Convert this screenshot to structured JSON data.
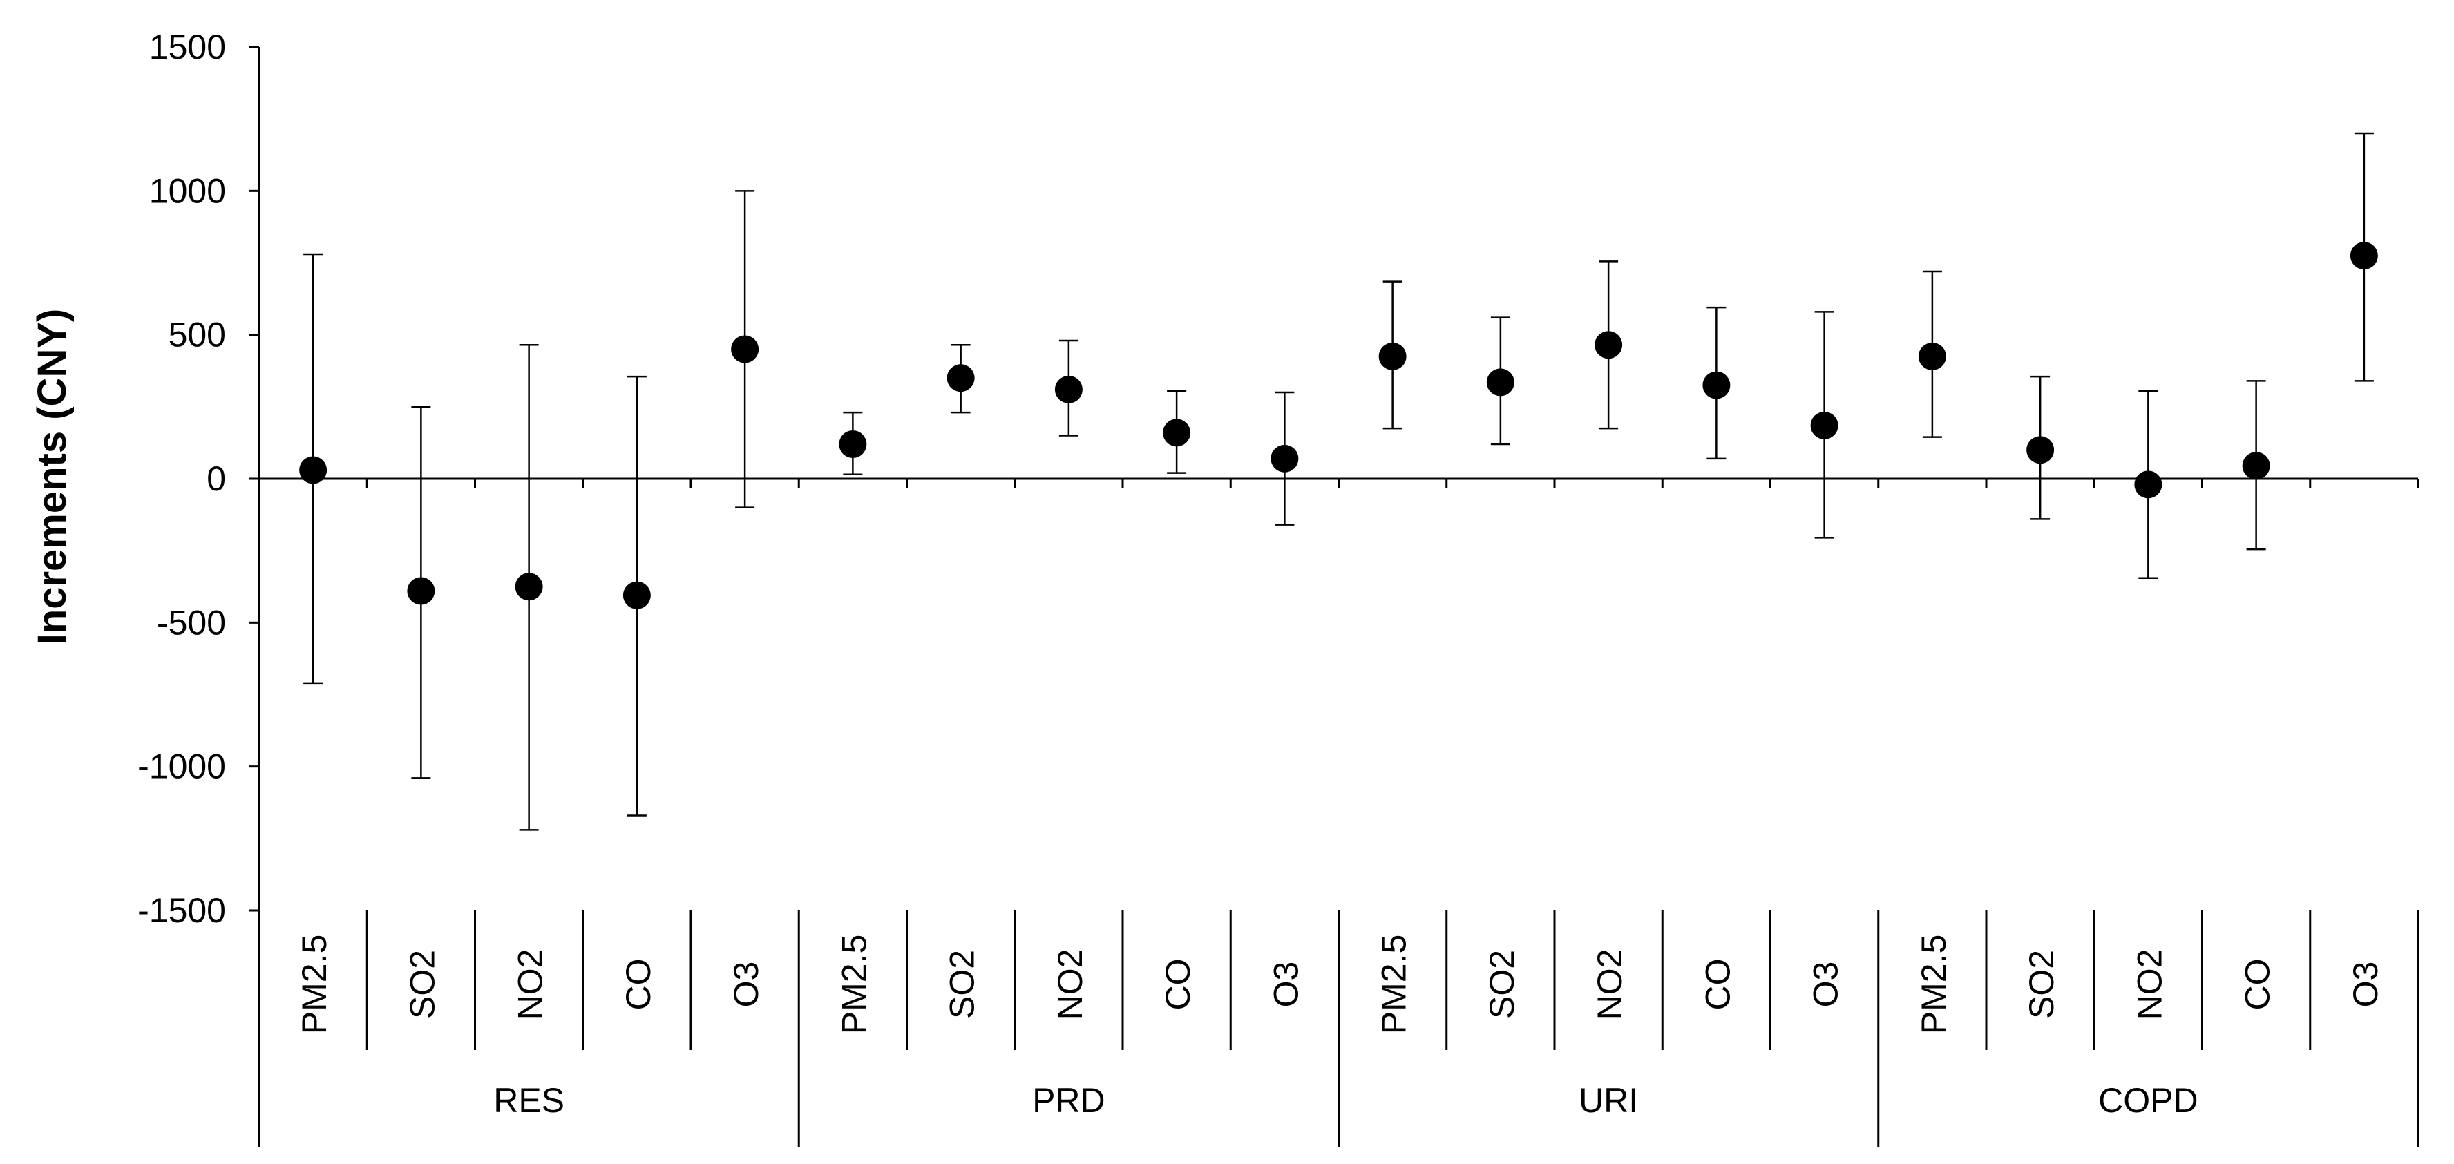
{
  "chart_data": {
    "type": "scatter",
    "title": "",
    "xlabel": "",
    "ylabel": "Increments (CNY)",
    "ylim": [
      -1500,
      1500
    ],
    "yticks": [
      1500,
      1000,
      500,
      0,
      -500,
      -1000,
      -1500
    ],
    "ytick_labels": [
      "1500",
      "1000",
      "500",
      "0",
      "-500",
      "-1000",
      "-1500"
    ],
    "grid": false,
    "legend": "none",
    "marker_color": "#000000",
    "groups": [
      {
        "name": "RES",
        "points": [
          {
            "label": "PM2.5",
            "value": 30,
            "lower": -710,
            "upper": 780
          },
          {
            "label": "SO2",
            "value": -390,
            "lower": -1040,
            "upper": 250
          },
          {
            "label": "NO2",
            "value": -375,
            "lower": -1220,
            "upper": 465
          },
          {
            "label": "CO",
            "value": -405,
            "lower": -1170,
            "upper": 355
          },
          {
            "label": "O3",
            "value": 450,
            "lower": -100,
            "upper": 1000
          }
        ]
      },
      {
        "name": "PRD",
        "points": [
          {
            "label": "PM2.5",
            "value": 120,
            "lower": 15,
            "upper": 230
          },
          {
            "label": "SO2",
            "value": 350,
            "lower": 230,
            "upper": 465
          },
          {
            "label": "NO2",
            "value": 310,
            "lower": 150,
            "upper": 480
          },
          {
            "label": "CO",
            "value": 160,
            "lower": 20,
            "upper": 305
          },
          {
            "label": "O3",
            "value": 70,
            "lower": -160,
            "upper": 300
          }
        ]
      },
      {
        "name": "URI",
        "points": [
          {
            "label": "PM2.5",
            "value": 425,
            "lower": 175,
            "upper": 685
          },
          {
            "label": "SO2",
            "value": 335,
            "lower": 120,
            "upper": 560
          },
          {
            "label": "NO2",
            "value": 465,
            "lower": 175,
            "upper": 755
          },
          {
            "label": "CO",
            "value": 325,
            "lower": 70,
            "upper": 595
          },
          {
            "label": "O3",
            "value": 185,
            "lower": -205,
            "upper": 580
          }
        ]
      },
      {
        "name": "COPD",
        "points": [
          {
            "label": "PM2.5",
            "value": 425,
            "lower": 145,
            "upper": 720
          },
          {
            "label": "SO2",
            "value": 100,
            "lower": -140,
            "upper": 355
          },
          {
            "label": "NO2",
            "value": -20,
            "lower": -345,
            "upper": 305
          },
          {
            "label": "CO",
            "value": 45,
            "lower": -245,
            "upper": 340
          },
          {
            "label": "O3",
            "value": 775,
            "lower": 340,
            "upper": 1200
          }
        ]
      }
    ]
  }
}
